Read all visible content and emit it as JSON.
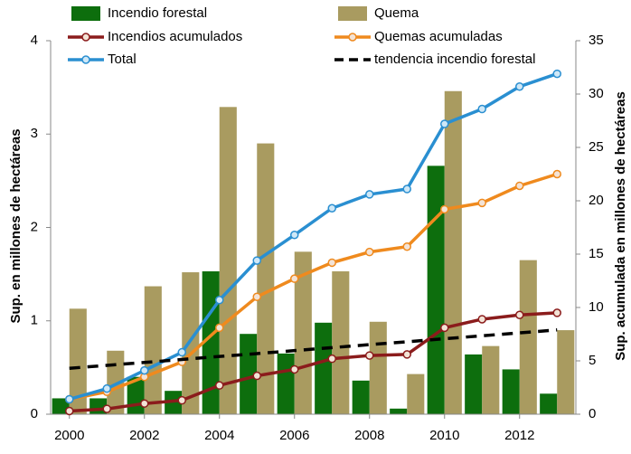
{
  "chart_data": {
    "type": "bar",
    "x": [
      2000,
      2001,
      2002,
      2003,
      2004,
      2005,
      2006,
      2007,
      2008,
      2009,
      2010,
      2011,
      2012,
      2013
    ],
    "xlim": [
      1999.5,
      2013.5
    ],
    "xticks": [
      2000,
      2002,
      2004,
      2006,
      2008,
      2010,
      2012
    ],
    "ylim": [
      0,
      4
    ],
    "yticks": [
      0,
      1,
      2,
      3,
      4
    ],
    "y2lim": [
      0,
      35
    ],
    "y2ticks": [
      0,
      5,
      10,
      15,
      20,
      25,
      30,
      35
    ],
    "ylabel": "Sup.  en millones de hectáreas",
    "y2label": "Sup.  acumulada en millones de hectáreas",
    "series": [
      {
        "name": "Incendio forestal",
        "type": "bar",
        "color": "#0d6e0d",
        "values": [
          0.17,
          0.17,
          0.4,
          0.25,
          1.53,
          0.86,
          0.65,
          0.98,
          0.36,
          0.06,
          2.66,
          0.64,
          0.48,
          0.22
        ]
      },
      {
        "name": "Quema",
        "type": "bar",
        "color": "#a99b60",
        "values": [
          1.13,
          0.68,
          1.37,
          1.52,
          3.29,
          2.9,
          1.74,
          1.53,
          0.99,
          0.43,
          3.46,
          0.73,
          1.65,
          0.9
        ]
      },
      {
        "name": "Incendios acumulados",
        "type": "line",
        "axis": "y2",
        "color": "#8b1c1c",
        "values": [
          0.3,
          0.5,
          1.0,
          1.3,
          2.7,
          3.6,
          4.2,
          5.2,
          5.5,
          5.6,
          8.1,
          8.9,
          9.3,
          9.5
        ]
      },
      {
        "name": "Quemas acumuladas",
        "type": "line",
        "axis": "y2",
        "color": "#ef8a1e",
        "values": [
          1.4,
          2.1,
          3.5,
          4.9,
          8.1,
          11.0,
          12.7,
          14.2,
          15.2,
          15.7,
          19.2,
          19.8,
          21.4,
          22.5
        ]
      },
      {
        "name": "Total",
        "type": "line",
        "axis": "y2",
        "color": "#2a8fd1",
        "values": [
          1.4,
          2.4,
          4.1,
          5.8,
          10.7,
          14.4,
          16.8,
          19.3,
          20.6,
          21.1,
          27.2,
          28.6,
          30.7,
          31.9
        ]
      },
      {
        "name": "tendencia incendio forestal",
        "type": "dashed",
        "axis": "y2",
        "color": "#000000",
        "values": [
          4.3,
          4.58,
          4.85,
          5.13,
          5.41,
          5.68,
          5.96,
          6.24,
          6.52,
          6.79,
          7.07,
          7.35,
          7.62,
          7.9
        ]
      }
    ]
  }
}
